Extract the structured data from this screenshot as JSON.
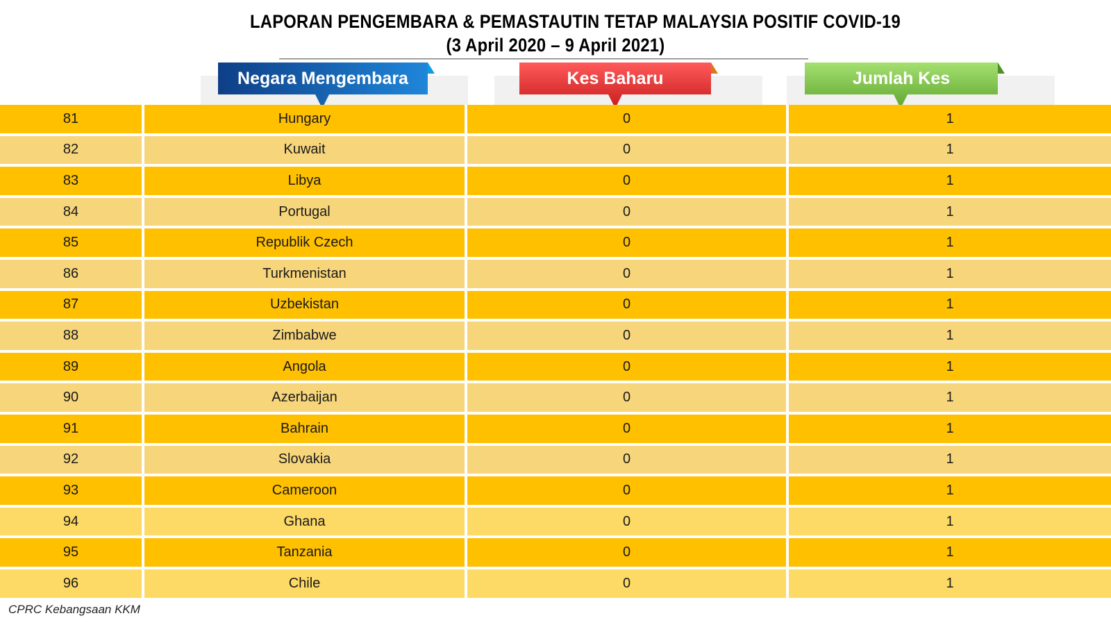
{
  "title": {
    "line1": "LAPORAN PENGEMBARA & PEMASTAUTIN TETAP MALAYSIA POSITIF COVID-19",
    "line2": "(3 April 2020 – 9 April  2021)"
  },
  "headers": {
    "country": "Negara Mengembara",
    "new_cases": "Kes Baharu",
    "total_cases": "Jumlah Kes"
  },
  "colors": {
    "header_country": "#1f6fc0",
    "header_new": "#e63232",
    "header_total": "#7ec440",
    "row_primary": "#ffc000",
    "row_alternate": "#f7d57b"
  },
  "rows": [
    {
      "no": "81",
      "country": "Hungary",
      "new": "0",
      "total": "1"
    },
    {
      "no": "82",
      "country": "Kuwait",
      "new": "0",
      "total": "1"
    },
    {
      "no": "83",
      "country": "Libya",
      "new": "0",
      "total": "1"
    },
    {
      "no": "84",
      "country": "Portugal",
      "new": "0",
      "total": "1"
    },
    {
      "no": "85",
      "country": "Republik Czech",
      "new": "0",
      "total": "1"
    },
    {
      "no": "86",
      "country": "Turkmenistan",
      "new": "0",
      "total": "1"
    },
    {
      "no": "87",
      "country": "Uzbekistan",
      "new": "0",
      "total": "1"
    },
    {
      "no": "88",
      "country": "Zimbabwe",
      "new": "0",
      "total": "1"
    },
    {
      "no": "89",
      "country": "Angola",
      "new": "0",
      "total": "1"
    },
    {
      "no": "90",
      "country": "Azerbaijan",
      "new": "0",
      "total": "1"
    },
    {
      "no": "91",
      "country": "Bahrain",
      "new": "0",
      "total": "1"
    },
    {
      "no": "92",
      "country": "Slovakia",
      "new": "0",
      "total": "1"
    },
    {
      "no": "93",
      "country": "Cameroon",
      "new": "0",
      "total": "1"
    },
    {
      "no": "94",
      "country": "Ghana",
      "new": "0",
      "total": "1"
    },
    {
      "no": "95",
      "country": "Tanzania",
      "new": "0",
      "total": "1"
    },
    {
      "no": "96",
      "country": "Chile",
      "new": "0",
      "total": "1"
    }
  ],
  "source": "CPRC Kebangsaan KKM"
}
